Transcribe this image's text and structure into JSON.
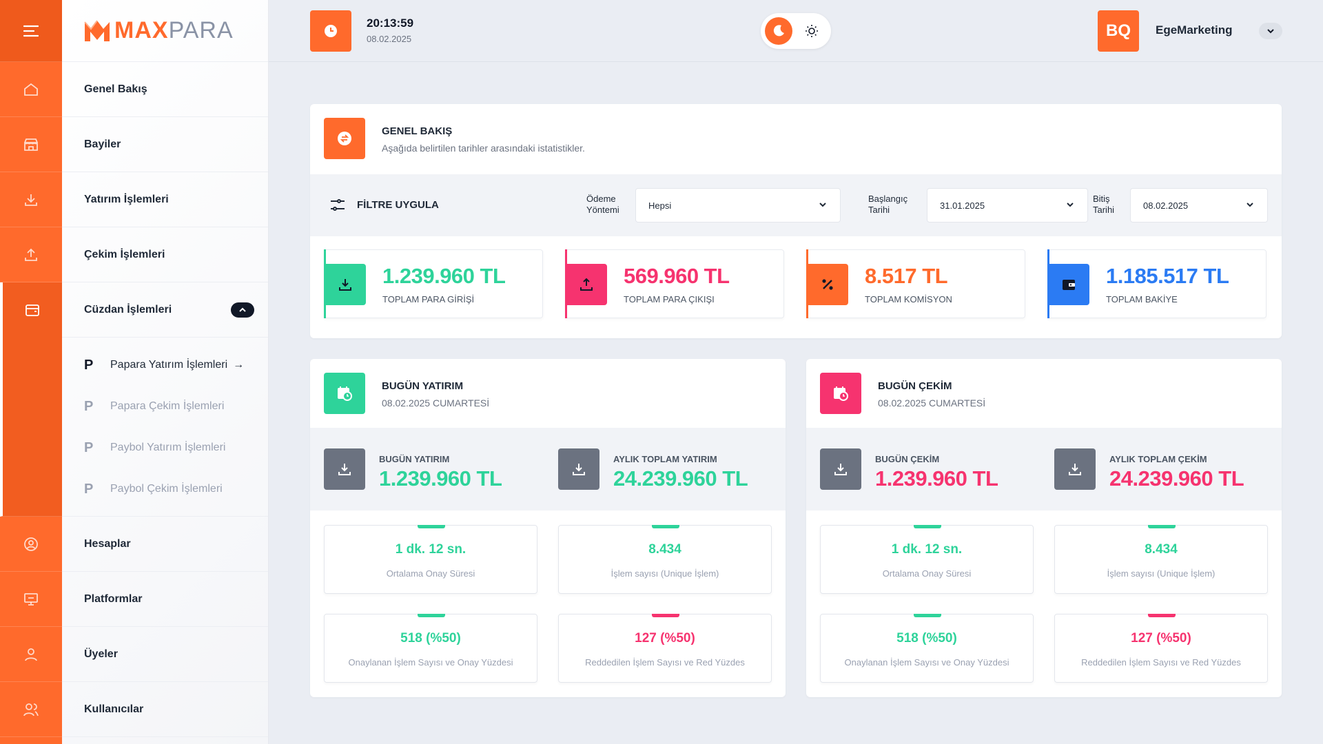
{
  "colors": {
    "accent": "#ff6a2c",
    "green": "#2ed39a",
    "pink": "#f6336f",
    "blue": "#2b7bf3",
    "gray": "#6b7280"
  },
  "logo": {
    "max": "MAX",
    "para": "PARA"
  },
  "rail": {
    "icons": [
      "menu-icon",
      "home-icon",
      "store-icon",
      "download-icon",
      "upload-icon",
      "wallet-icon",
      "user-circle-icon",
      "monitor-icon",
      "user-icon",
      "users-icon"
    ]
  },
  "nav": {
    "items": [
      {
        "label": "Genel Bakış"
      },
      {
        "label": "Bayiler"
      },
      {
        "label": "Yatırım İşlemleri"
      },
      {
        "label": "Çekim İşlemleri"
      },
      {
        "label": "Cüzdan İşlemleri"
      },
      {
        "label": "Hesaplar"
      },
      {
        "label": "Platformlar"
      },
      {
        "label": "Üyeler"
      },
      {
        "label": "Kullanıcılar"
      }
    ],
    "subitems": [
      {
        "label": "Papara Yatırım İşlemleri",
        "active": true
      },
      {
        "label": "Papara Çekim İşlemleri"
      },
      {
        "label": "Paybol Yatırım İşlemleri"
      },
      {
        "label": "Paybol Çekim İşlemleri"
      }
    ]
  },
  "topbar": {
    "time": "20:13:59",
    "date": "08.02.2025",
    "avatar_initials": "BQ",
    "user_name": "EgeMarketing"
  },
  "overview": {
    "title": "GENEL BAKIŞ",
    "subtitle": "Aşağıda belirtilen tarihler arasındaki istatistikler.",
    "filter_label": "FİLTRE UYGULA",
    "payment_method_label_1": "Ödeme",
    "payment_method_label_2": "Yöntemi",
    "payment_method_value": "Hepsi",
    "start_label_1": "Başlangıç",
    "start_label_2": "Tarihi",
    "start_value": "31.01.2025",
    "end_label_1": "Bitiş",
    "end_label_2": "Tarihi",
    "end_value": "08.02.2025",
    "stats": [
      {
        "value": "1.239.960 TL",
        "label": "TOPLAM PARA GİRİŞİ"
      },
      {
        "value": "569.960 TL",
        "label": "TOPLAM PARA ÇIKIŞI"
      },
      {
        "value": "8.517 TL",
        "label": "TOPLAM KOMİSYON"
      },
      {
        "value": "1.185.517 TL",
        "label": "TOPLAM BAKİYE"
      }
    ]
  },
  "deposit": {
    "title": "BUGÜN YATIRIM",
    "subtitle": "08.02.2025 CUMARTESİ",
    "today_label": "BUGÜN YATIRIM",
    "today_value": "1.239.960 TL",
    "monthly_label": "AYLIK TOPLAM YATIRIM",
    "monthly_value": "24.239.960 TL",
    "metrics": [
      {
        "value": "1 dk. 12 sn.",
        "label": "Ortalama Onay Süresi"
      },
      {
        "value": "8.434",
        "label": "İşlem sayısı (Unique İşlem)"
      },
      {
        "value": "518 (%50)",
        "label": "Onaylanan İşlem Sayısı ve Onay Yüzdesi"
      },
      {
        "value": "127 (%50)",
        "label": "Reddedilen İşlem Sayısı ve Red Yüzdes"
      }
    ]
  },
  "withdraw": {
    "title": "BUGÜN ÇEKİM",
    "subtitle": "08.02.2025 CUMARTESİ",
    "today_label": "BUGÜN ÇEKİM",
    "today_value": "1.239.960 TL",
    "monthly_label": "AYLIK TOPLAM ÇEKİM",
    "monthly_value": "24.239.960 TL",
    "metrics": [
      {
        "value": "1 dk. 12 sn.",
        "label": "Ortalama Onay Süresi"
      },
      {
        "value": "8.434",
        "label": "İşlem sayısı (Unique İşlem)"
      },
      {
        "value": "518 (%50)",
        "label": "Onaylanan İşlem Sayısı ve Onay Yüzdesi"
      },
      {
        "value": "127 (%50)",
        "label": "Reddedilen İşlem Sayısı ve Red Yüzdes"
      }
    ]
  }
}
